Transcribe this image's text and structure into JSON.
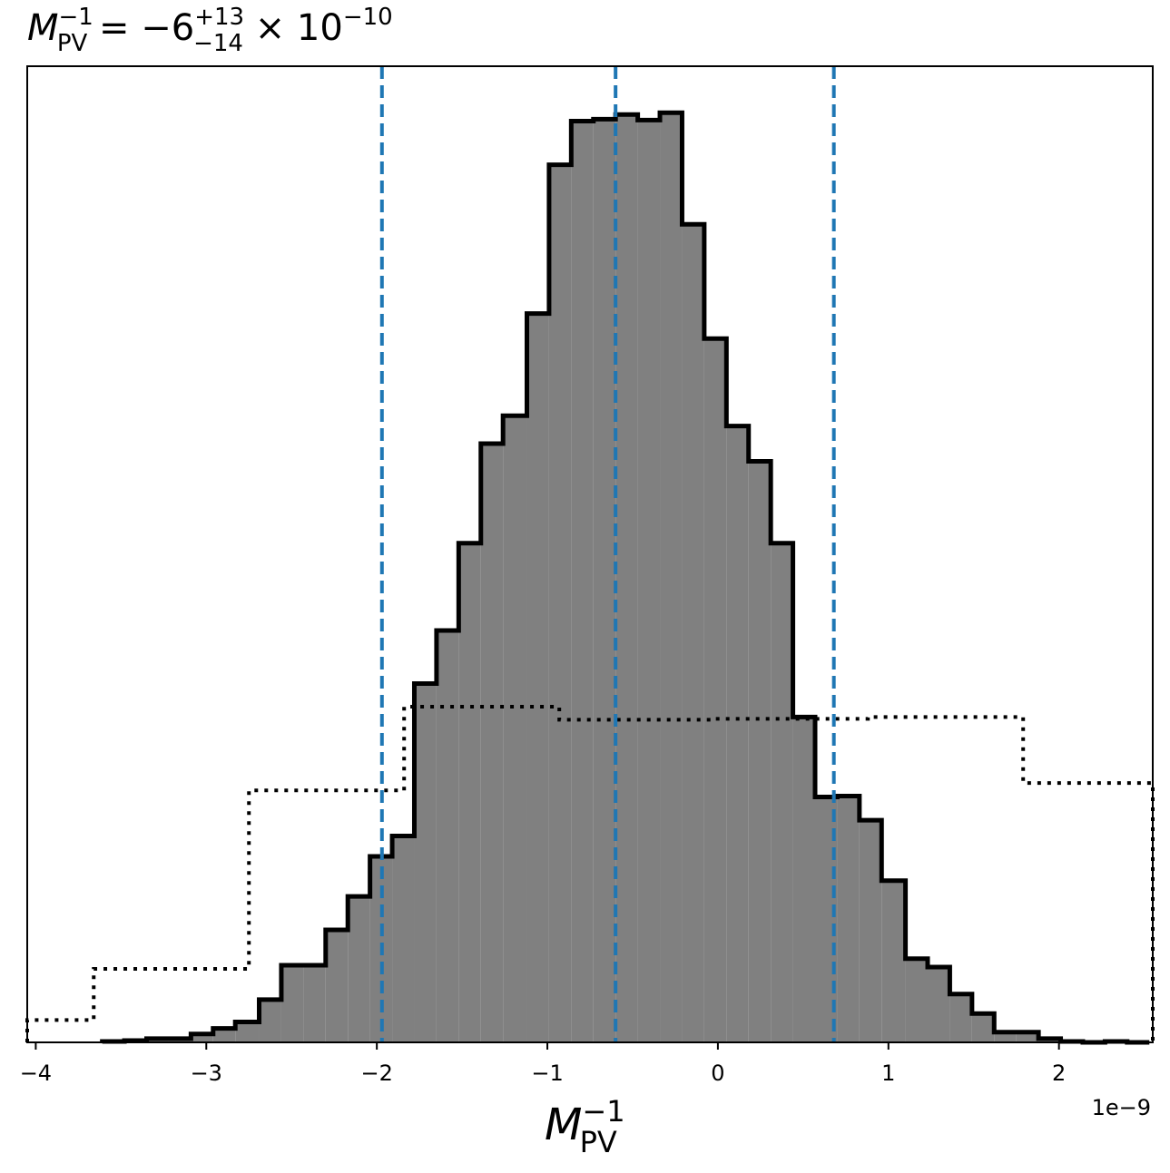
{
  "chart_data": {
    "type": "bar",
    "title": {
      "symbol": "M",
      "sub": "PV",
      "sup": "−1",
      "equals": " = ",
      "value": "−6",
      "err_plus": "+13",
      "err_minus": "−14",
      "times": " × 10",
      "exponent": "−10"
    },
    "xlabel": {
      "symbol": "M",
      "sub": "PV",
      "sup": "−1"
    },
    "x_offset_label": "1e−9",
    "xlim": [
      -4.05,
      2.55
    ],
    "ylim": [
      0,
      1.05
    ],
    "x_ticks": [
      {
        "v": -4,
        "label": "−4"
      },
      {
        "v": -3,
        "label": "−3"
      },
      {
        "v": -2,
        "label": "−2"
      },
      {
        "v": -1,
        "label": "−1"
      },
      {
        "v": 0,
        "label": "0"
      },
      {
        "v": 1,
        "label": "1"
      },
      {
        "v": 2,
        "label": "2"
      }
    ],
    "y_ticks_shown": false,
    "posterior_histogram": {
      "fill_color": "#808080",
      "edge_color": "#000000",
      "bin_edges": [
        -3.61,
        -3.48,
        -3.35,
        -3.22,
        -3.09,
        -2.96,
        -2.83,
        -2.69,
        -2.56,
        -2.43,
        -2.3,
        -2.17,
        -2.04,
        -1.91,
        -1.78,
        -1.65,
        -1.52,
        -1.39,
        -1.26,
        -1.12,
        -0.99,
        -0.86,
        -0.73,
        -0.6,
        -0.47,
        -0.34,
        -0.21,
        -0.08,
        0.05,
        0.18,
        0.31,
        0.44,
        0.57,
        0.7,
        0.83,
        0.96,
        1.1,
        1.23,
        1.36,
        1.49,
        1.62,
        1.75,
        1.88,
        2.01,
        2.14,
        2.27,
        2.4,
        2.53
      ],
      "values": [
        0.001,
        0.002,
        0.004,
        0.004,
        0.009,
        0.015,
        0.022,
        0.046,
        0.083,
        0.083,
        0.121,
        0.157,
        0.2,
        0.222,
        0.386,
        0.443,
        0.537,
        0.644,
        0.674,
        0.784,
        0.944,
        0.991,
        0.993,
        0.998,
        0.992,
        1.0,
        0.88,
        0.757,
        0.663,
        0.625,
        0.537,
        0.35,
        0.264,
        0.265,
        0.239,
        0.174,
        0.09,
        0.081,
        0.052,
        0.031,
        0.011,
        0.011,
        0.004,
        0.001,
        0.0,
        0.001,
        0.0
      ],
      "line_width": 5
    },
    "prior_histogram": {
      "style": "dotted",
      "edge_color": "#000000",
      "bin_edges": [
        -4.1,
        -3.66,
        -2.75,
        -1.84,
        -0.93,
        -0.02,
        0.88,
        1.79,
        2.55
      ],
      "values": [
        0.024,
        0.079,
        0.271,
        0.361,
        0.347,
        0.348,
        0.35,
        0.279
      ],
      "line_width": 4
    },
    "quantile_lines": {
      "color": "#1f77b4",
      "style": "dashed",
      "values": [
        -1.97,
        -0.6,
        0.68
      ]
    }
  }
}
